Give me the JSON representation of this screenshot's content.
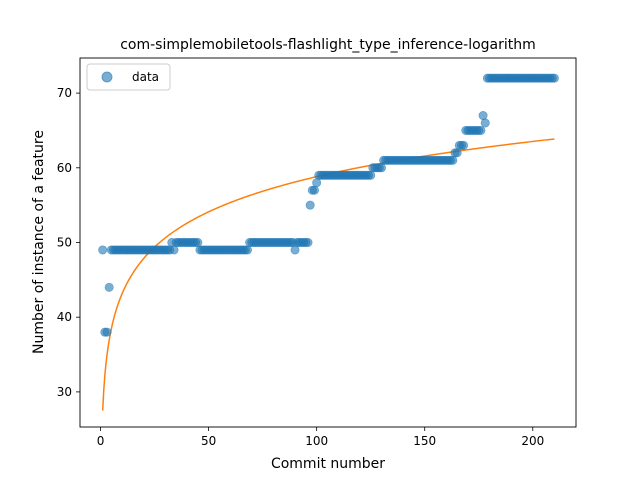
{
  "chart_data": {
    "type": "scatter",
    "title": "com-simplemobiletools-flashlight_type_inference-logarithm",
    "xlabel": "Commit number",
    "ylabel": "Number of instance of a feature",
    "xlim": [
      -9.5,
      220
    ],
    "ylim": [
      25.3,
      74.7
    ],
    "xticks": [
      0,
      50,
      100,
      150,
      200
    ],
    "yticks": [
      30,
      40,
      50,
      60,
      70
    ],
    "legend": {
      "position": "top-left",
      "entries": [
        "data"
      ]
    },
    "colors": {
      "points": "#1f77b4",
      "fit": "#ff7f0e"
    },
    "series": [
      {
        "name": "data",
        "kind": "points",
        "segments": [
          [
            1,
            49
          ],
          [
            2,
            38
          ],
          [
            3,
            38
          ],
          [
            4,
            44
          ],
          [
            5,
            49,
            32,
            49
          ],
          [
            33,
            50
          ],
          [
            34,
            49
          ],
          [
            35,
            50,
            45,
            50
          ],
          [
            46,
            49,
            68,
            49
          ],
          [
            69,
            50,
            89,
            50
          ],
          [
            90,
            49
          ],
          [
            91,
            50,
            96,
            50
          ],
          [
            97,
            55
          ],
          [
            98,
            57
          ],
          [
            99,
            57
          ],
          [
            100,
            58
          ],
          [
            101,
            59,
            125,
            59
          ],
          [
            126,
            60,
            130,
            60
          ],
          [
            131,
            61,
            163,
            61
          ],
          [
            164,
            62
          ],
          [
            165,
            62
          ],
          [
            166,
            63
          ],
          [
            167,
            63
          ],
          [
            168,
            63
          ],
          [
            169,
            65,
            176,
            65
          ],
          [
            177,
            67
          ],
          [
            178,
            66
          ],
          [
            179,
            72,
            210,
            72
          ]
        ]
      },
      {
        "kind": "fit",
        "model": "y = a + b*ln(x)",
        "a": 27.5,
        "b": 6.8,
        "x_range": [
          1,
          210
        ]
      }
    ]
  }
}
